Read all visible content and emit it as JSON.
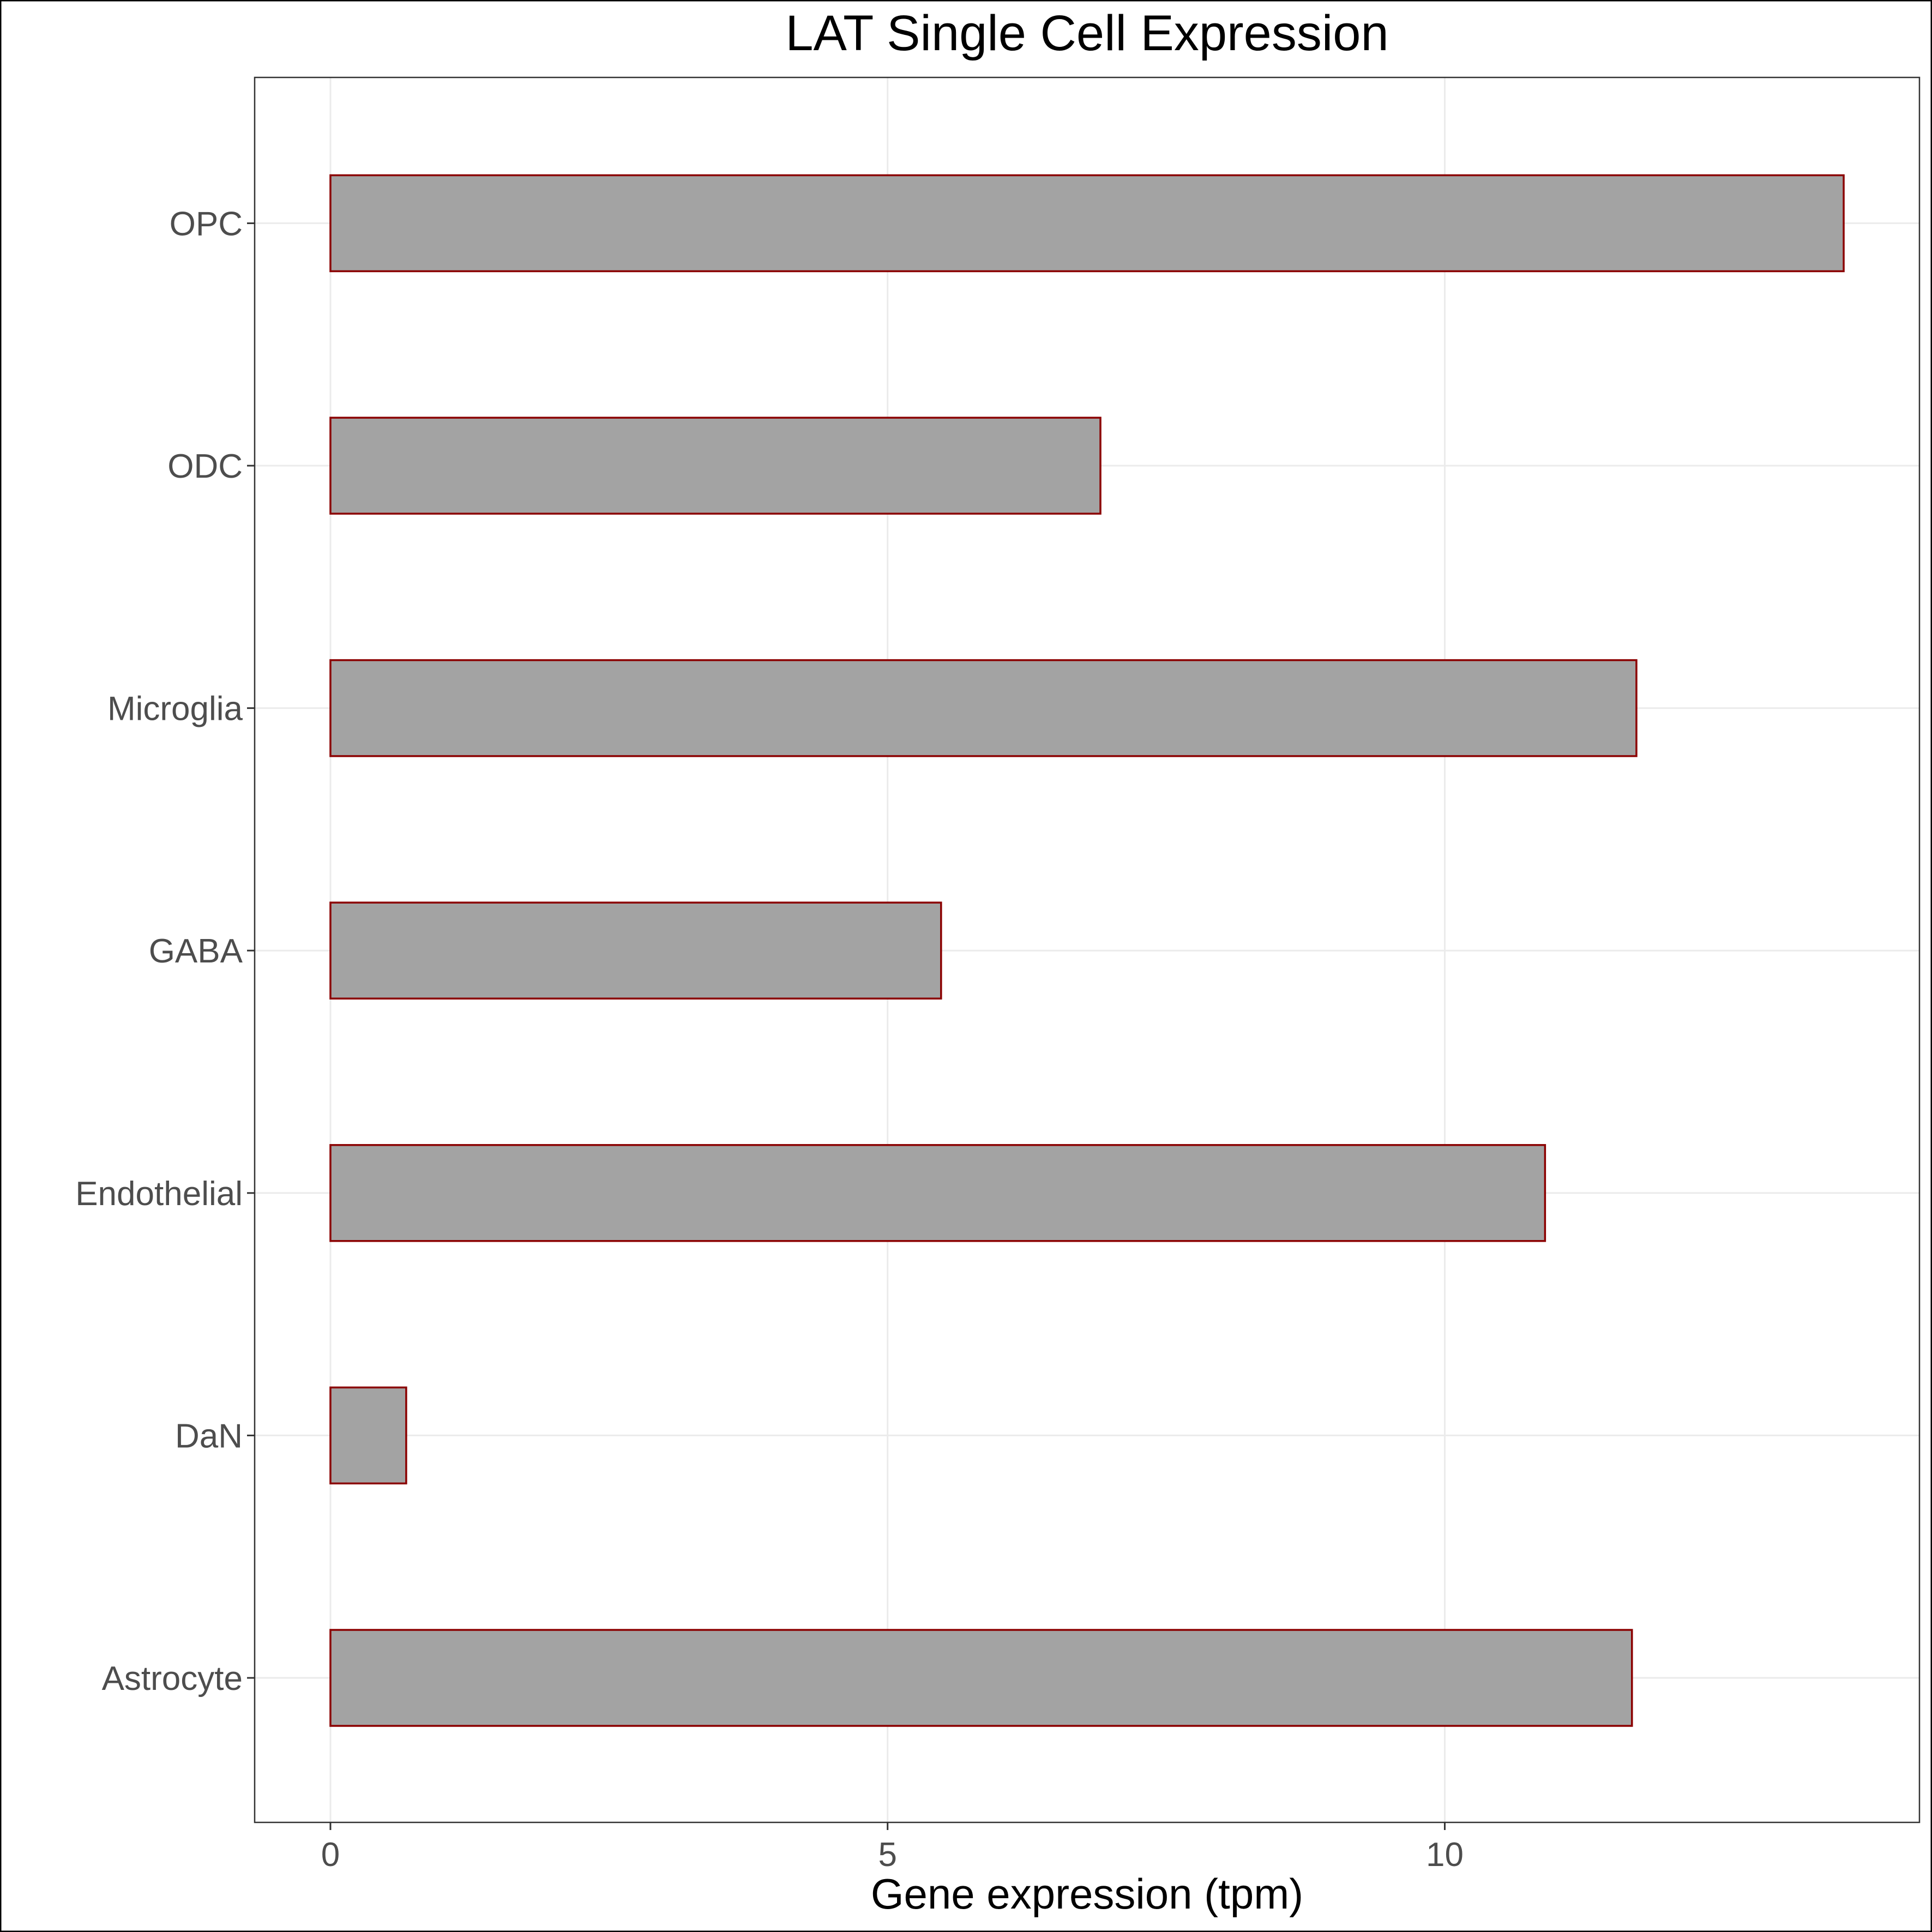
{
  "chart_data": {
    "type": "bar",
    "orientation": "horizontal",
    "title": "LAT Single Cell Expression",
    "xlabel": "Gene expression (tpm)",
    "ylabel": "",
    "categories": [
      "Astrocyte",
      "DaN",
      "Endothelial",
      "GABA",
      "Microglia",
      "ODC",
      "OPC"
    ],
    "values": [
      11.68,
      0.68,
      10.9,
      5.48,
      11.72,
      6.91,
      13.58
    ],
    "xlim": [
      -0.68,
      14.26
    ],
    "xticks": [
      0,
      5,
      10
    ],
    "xtick_labels": [
      "0",
      "5",
      "10"
    ],
    "grid": true,
    "legend": "none",
    "bar_fill": "#a3a3a3",
    "bar_outline": "#8b0000",
    "grid_color": "#ebebeb",
    "frame_color": "#333333",
    "tick_label_color": "#4d4d4d"
  }
}
